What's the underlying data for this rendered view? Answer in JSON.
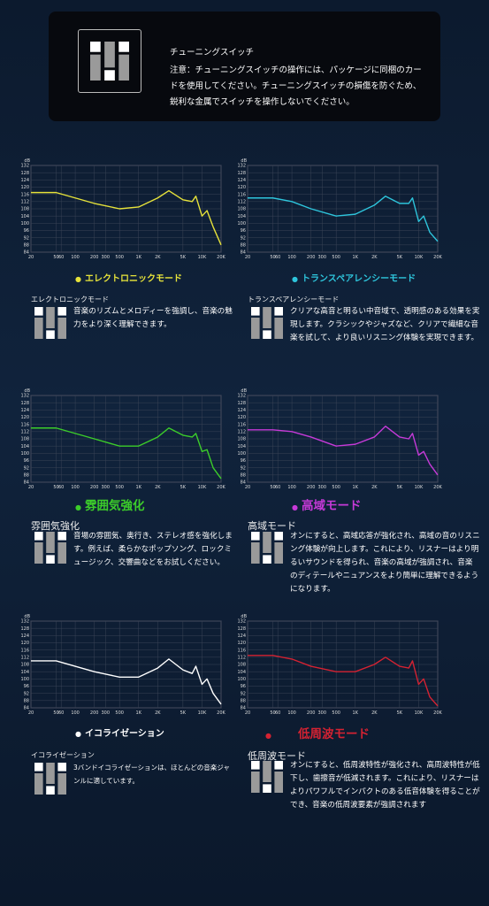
{
  "header": {
    "title": "チューニングスイッチ",
    "note": "注意：チューニングスイッチの操作には、パッケージに同梱のカードを使用してください。チューニングスイッチの損傷を防ぐため、鋭利な金属でスイッチを操作しないでください。"
  },
  "chart_data": [
    {
      "type": "line",
      "ylabel": "dB",
      "x": [
        20,
        50,
        100,
        200,
        500,
        1000,
        2000,
        3000,
        5000,
        7000,
        8000,
        10000,
        12000,
        15000,
        20000
      ],
      "series": [
        {
          "name": "エレクトロニックモード",
          "color": "#e6e23a",
          "values": [
            117,
            117,
            114,
            111,
            108,
            109,
            114,
            118,
            113,
            112,
            115,
            104,
            107,
            98,
            88
          ]
        }
      ],
      "xlim": [
        20,
        20000
      ],
      "ylim": [
        84,
        132
      ],
      "log_x": true,
      "grid": true,
      "xticks": [
        20,
        50,
        60,
        100,
        200,
        300,
        500,
        {
          "value": 1000,
          "label": "1K"
        },
        {
          "value": 2000,
          "label": "2K"
        },
        {
          "value": 5000,
          "label": "5K"
        },
        {
          "value": 10000,
          "label": "10K"
        },
        {
          "value": 20000,
          "label": "20K"
        }
      ],
      "yticks": [
        84,
        88,
        92,
        96,
        100,
        104,
        108,
        112,
        116,
        120,
        124,
        128,
        132
      ]
    },
    {
      "type": "line",
      "ylabel": "dB",
      "x": [
        20,
        50,
        100,
        200,
        500,
        1000,
        2000,
        3000,
        5000,
        7000,
        8000,
        10000,
        12000,
        15000,
        20000
      ],
      "series": [
        {
          "name": "トランスペアレンシーモード",
          "color": "#2ec5dc",
          "values": [
            114,
            114,
            112,
            108,
            104,
            105,
            110,
            115,
            111,
            111,
            114,
            101,
            104,
            95,
            90
          ]
        }
      ],
      "xlim": [
        20,
        20000
      ],
      "ylim": [
        84,
        132
      ],
      "log_x": true,
      "grid": true,
      "xticks": [
        20,
        50,
        60,
        100,
        200,
        300,
        500,
        {
          "value": 1000,
          "label": "1K"
        },
        {
          "value": 2000,
          "label": "2K"
        },
        {
          "value": 5000,
          "label": "5K"
        },
        {
          "value": 10000,
          "label": "10K"
        },
        {
          "value": 20000,
          "label": "20K"
        }
      ],
      "yticks": [
        84,
        88,
        92,
        96,
        100,
        104,
        108,
        112,
        116,
        120,
        124,
        128,
        132
      ]
    },
    {
      "type": "line",
      "ylabel": "dB",
      "x": [
        20,
        50,
        100,
        200,
        500,
        1000,
        2000,
        3000,
        5000,
        7000,
        8000,
        10000,
        12000,
        15000,
        20000
      ],
      "series": [
        {
          "name": "雰囲気強化",
          "color": "#3ccd2a",
          "values": [
            114,
            114,
            111,
            108,
            104,
            104,
            109,
            114,
            110,
            109,
            111,
            101,
            102,
            92,
            86
          ]
        }
      ],
      "xlim": [
        20,
        20000
      ],
      "ylim": [
        84,
        132
      ],
      "log_x": true,
      "grid": true,
      "xticks": [
        20,
        50,
        60,
        100,
        200,
        300,
        500,
        {
          "value": 1000,
          "label": "1K"
        },
        {
          "value": 2000,
          "label": "2K"
        },
        {
          "value": 5000,
          "label": "5K"
        },
        {
          "value": 10000,
          "label": "10K"
        },
        {
          "value": 20000,
          "label": "20K"
        }
      ],
      "yticks": [
        84,
        88,
        92,
        96,
        100,
        104,
        108,
        112,
        116,
        120,
        124,
        128,
        132
      ]
    },
    {
      "type": "line",
      "ylabel": "dB",
      "x": [
        20,
        50,
        100,
        200,
        500,
        1000,
        2000,
        3000,
        5000,
        7000,
        8000,
        10000,
        12000,
        15000,
        20000
      ],
      "series": [
        {
          "name": "高域モード",
          "color": "#c63ad8",
          "values": [
            113,
            113,
            112,
            109,
            104,
            105,
            109,
            115,
            109,
            108,
            111,
            99,
            101,
            94,
            88
          ]
        }
      ],
      "xlim": [
        20,
        20000
      ],
      "ylim": [
        84,
        132
      ],
      "log_x": true,
      "grid": true,
      "xticks": [
        20,
        50,
        60,
        100,
        200,
        300,
        500,
        {
          "value": 1000,
          "label": "1K"
        },
        {
          "value": 2000,
          "label": "2K"
        },
        {
          "value": 5000,
          "label": "5K"
        },
        {
          "value": 10000,
          "label": "10K"
        },
        {
          "value": 20000,
          "label": "20K"
        }
      ],
      "yticks": [
        84,
        88,
        92,
        96,
        100,
        104,
        108,
        112,
        116,
        120,
        124,
        128,
        132
      ]
    },
    {
      "type": "line",
      "ylabel": "dB",
      "x": [
        20,
        50,
        100,
        200,
        500,
        1000,
        2000,
        3000,
        5000,
        7000,
        8000,
        10000,
        12000,
        15000,
        20000
      ],
      "series": [
        {
          "name": "イコライゼーション",
          "color": "#ffffff",
          "values": [
            110,
            110,
            107,
            104,
            101,
            101,
            106,
            111,
            105,
            103,
            107,
            97,
            100,
            92,
            86
          ]
        }
      ],
      "xlim": [
        20,
        20000
      ],
      "ylim": [
        84,
        132
      ],
      "log_x": true,
      "grid": true,
      "xticks": [
        20,
        50,
        60,
        100,
        200,
        300,
        500,
        {
          "value": 1000,
          "label": "1K"
        },
        {
          "value": 2000,
          "label": "2K"
        },
        {
          "value": 5000,
          "label": "5K"
        },
        {
          "value": 10000,
          "label": "10K"
        },
        {
          "value": 20000,
          "label": "20K"
        }
      ],
      "yticks": [
        84,
        88,
        92,
        96,
        100,
        104,
        108,
        112,
        116,
        120,
        124,
        128,
        132
      ]
    },
    {
      "type": "line",
      "ylabel": "dB",
      "x": [
        20,
        50,
        100,
        200,
        500,
        1000,
        2000,
        3000,
        5000,
        7000,
        8000,
        10000,
        12000,
        15000,
        20000
      ],
      "series": [
        {
          "name": "低周波モード",
          "color": "#d42232",
          "values": [
            113,
            113,
            111,
            107,
            104,
            104,
            108,
            112,
            107,
            106,
            110,
            97,
            100,
            90,
            85
          ]
        }
      ],
      "xlim": [
        20,
        20000
      ],
      "ylim": [
        84,
        132
      ],
      "log_x": true,
      "grid": true,
      "xticks": [
        20,
        50,
        60,
        100,
        200,
        300,
        500,
        {
          "value": 1000,
          "label": "1K"
        },
        {
          "value": 2000,
          "label": "2K"
        },
        {
          "value": 5000,
          "label": "5K"
        },
        {
          "value": 10000,
          "label": "10K"
        },
        {
          "value": 20000,
          "label": "20K"
        }
      ],
      "yticks": [
        84,
        88,
        92,
        96,
        100,
        104,
        108,
        112,
        116,
        120,
        124,
        128,
        132
      ]
    }
  ],
  "modes": [
    {
      "heading": "エレクトロニックモード",
      "description": "音楽のリズムとメロディーを強調し、音楽の魅力をより深く理解できます。"
    },
    {
      "heading": "トランスペアレンシーモード",
      "description": "クリアな高音と明るい中音域で、透明感のある効果を実現します。クラシックやジャズなど、クリアで繊細な音楽を試して、より良いリスニング体験を実現できます。"
    },
    {
      "heading": "雰囲気強化",
      "description": "音場の雰囲気、奥行き、ステレオ感を強化します。例えば、柔らかなポップソング、ロックミュージック、交響曲などをお試しください。"
    },
    {
      "heading": "高域モード",
      "description": "オンにすると、高域応答が強化され、高域の音のリスニング体験が向上します。これにより、リスナーはより明るいサウンドを得られ、音楽の高域が強調され、音楽のディテールやニュアンスをより簡単に理解できるようになります。"
    },
    {
      "heading": "イコライゼーション",
      "description": "3バンドイコライゼーションは、ほとんどの音楽ジャンルに適しています。"
    },
    {
      "heading": "低周波モード",
      "description": "オンにすると、低周波特性が強化され、高周波特性が低下し、歯擦音が低減されます。これにより、リスナーはよりパワフルでインパクトのある低音体験を得ることができ、音楽の低周波要素が強調されます"
    }
  ]
}
